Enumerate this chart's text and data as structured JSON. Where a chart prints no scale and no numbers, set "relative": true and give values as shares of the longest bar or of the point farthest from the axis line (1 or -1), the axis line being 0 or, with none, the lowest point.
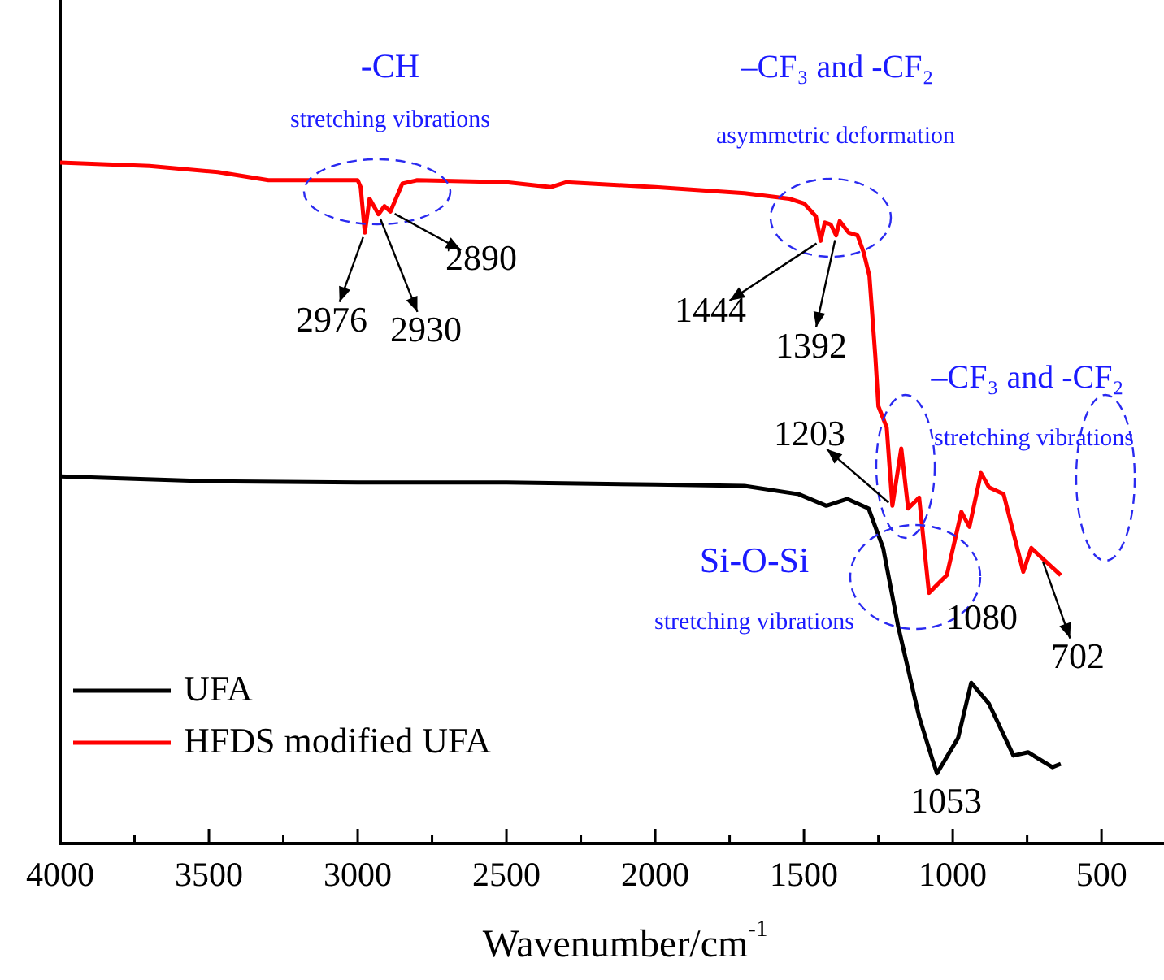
{
  "chart_data": {
    "type": "line",
    "relative": true,
    "xlabel": "Wavenumber/cm$^{-1}$",
    "xlim": [
      4000,
      290
    ],
    "xticks": [
      4000,
      {
        "value": 3750,
        "label": null
      },
      3500,
      {
        "value": 3250,
        "label": null
      },
      3000,
      {
        "value": 2750,
        "label": null
      },
      2500,
      {
        "value": 2250,
        "label": null
      },
      2000,
      {
        "value": 1750,
        "label": null
      },
      1500,
      {
        "value": 1250,
        "label": null
      },
      1000,
      {
        "value": 750,
        "label": null
      },
      500
    ],
    "legend": "bottom left",
    "grid": false,
    "marker": "none",
    "line_style": "solid",
    "series": [
      {
        "name": "UFA",
        "color": "#000000",
        "x": [
          4000,
          3500,
          3000,
          2500,
          2000,
          1700,
          1518,
          1425,
          1354,
          1283,
          1234,
          1184,
          1113,
          1069,
          1053,
          982,
          938,
          878,
          796,
          747,
          665,
          637
        ],
        "values": [
          0.539,
          0.532,
          0.53,
          0.53,
          0.527,
          0.525,
          0.513,
          0.496,
          0.506,
          0.492,
          0.434,
          0.32,
          0.186,
          0.124,
          0.103,
          0.155,
          0.236,
          0.205,
          0.129,
          0.134,
          0.112,
          0.117
        ]
      },
      {
        "name": "HFDS modified UFA",
        "color": "#ff0000",
        "x": [
          4000,
          3700,
          3470,
          3300,
          3000,
          2990,
          2976,
          2960,
          2930,
          2910,
          2890,
          2850,
          2800,
          2500,
          2350,
          2300,
          2000,
          1700,
          1550,
          1500,
          1460,
          1444,
          1430,
          1410,
          1392,
          1380,
          1350,
          1320,
          1300,
          1280,
          1260,
          1250,
          1222,
          1203,
          1173,
          1150,
          1113,
          1080,
          1020,
          971,
          944,
          905,
          878,
          829,
          763,
          736,
          702,
          637
        ],
        "values": [
          1.0,
          0.995,
          0.986,
          0.974,
          0.974,
          0.964,
          0.897,
          0.947,
          0.924,
          0.936,
          0.928,
          0.969,
          0.974,
          0.971,
          0.964,
          0.971,
          0.964,
          0.955,
          0.947,
          0.94,
          0.921,
          0.885,
          0.912,
          0.909,
          0.893,
          0.914,
          0.897,
          0.893,
          0.869,
          0.833,
          0.714,
          0.642,
          0.611,
          0.496,
          0.58,
          0.492,
          0.508,
          0.368,
          0.394,
          0.487,
          0.465,
          0.544,
          0.523,
          0.513,
          0.399,
          0.434,
          0.42,
          0.394
        ]
      }
    ],
    "annotations": [
      {
        "text": "2976",
        "x": 2976,
        "y": 0.897
      },
      {
        "text": "2930",
        "x": 2930,
        "y": 0.924
      },
      {
        "text": "2890",
        "x": 2890,
        "y": 0.928
      },
      {
        "text": "1444",
        "x": 1444,
        "y": 0.885
      },
      {
        "text": "1392",
        "x": 1392,
        "y": 0.893
      },
      {
        "text": "1203",
        "x": 1203,
        "y": 0.496
      },
      {
        "text": "1080",
        "x": 1080,
        "y": 0.368
      },
      {
        "text": "702",
        "x": 702,
        "y": 0.42
      },
      {
        "text": "1053",
        "x": 1053,
        "y": 0.103
      },
      "-CH",
      "stretching vibrations",
      "–CF₃ and -CF₂",
      "asymmetric deformation",
      "–CF₃ and -CF₂",
      "stretching vibrations",
      "Si-O-Si",
      "stretching vibrations"
    ]
  }
}
